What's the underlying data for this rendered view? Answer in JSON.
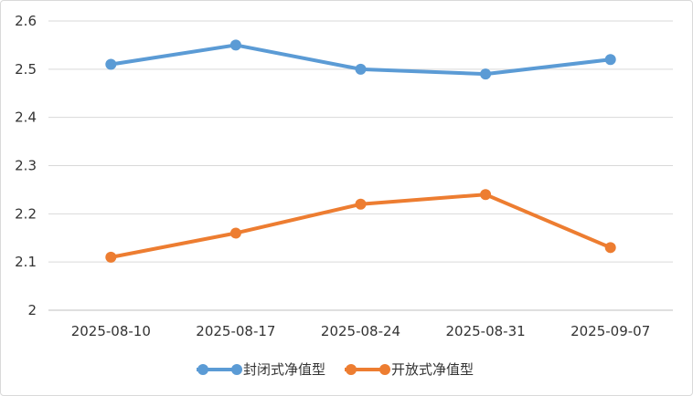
{
  "chart_data": {
    "type": "line",
    "title": "",
    "xlabel": "",
    "ylabel": "",
    "categories": [
      "2025-08-10",
      "2025-08-17",
      "2025-08-24",
      "2025-08-31",
      "2025-09-07"
    ],
    "ylim": [
      2,
      2.6
    ],
    "yticks": [
      "2",
      "2.1",
      "2.2",
      "2.3",
      "2.4",
      "2.5",
      "2.6"
    ],
    "grid": true,
    "legend_position": "bottom",
    "series": [
      {
        "name": "封闭式净值型",
        "values": [
          2.51,
          2.55,
          2.5,
          2.49,
          2.52
        ],
        "color": "#5b9bd5"
      },
      {
        "name": "开放式净值型",
        "values": [
          2.11,
          2.16,
          2.22,
          2.24,
          2.13
        ],
        "color": "#ed7d31"
      }
    ]
  }
}
